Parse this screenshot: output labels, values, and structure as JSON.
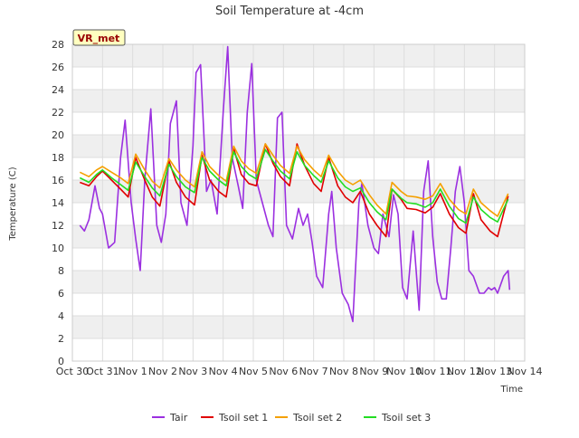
{
  "chart_data": {
    "type": "line",
    "title": "Soil Temperature at -4cm",
    "xlabel": "Time",
    "ylabel": "Temperature (C)",
    "badge": "VR_met",
    "ylim": [
      0,
      28
    ],
    "yticks": [
      0,
      2,
      4,
      6,
      8,
      10,
      12,
      14,
      16,
      18,
      20,
      22,
      24,
      26,
      28
    ],
    "xlim": [
      0,
      15
    ],
    "xticks": [
      {
        "v": 0,
        "label": "Oct 30"
      },
      {
        "v": 1,
        "label": "Oct 31"
      },
      {
        "v": 2,
        "label": "Nov 1"
      },
      {
        "v": 3,
        "label": "Nov 2"
      },
      {
        "v": 4,
        "label": "Nov 3"
      },
      {
        "v": 5,
        "label": "Nov 4"
      },
      {
        "v": 6,
        "label": "Nov 5"
      },
      {
        "v": 7,
        "label": "Nov 6"
      },
      {
        "v": 8,
        "label": "Nov 7"
      },
      {
        "v": 9,
        "label": "Nov 8"
      },
      {
        "v": 10,
        "label": "Nov 9"
      },
      {
        "v": 11,
        "label": "Nov 10"
      },
      {
        "v": 12,
        "label": "Nov 11"
      },
      {
        "v": 13,
        "label": "Nov 12"
      },
      {
        "v": 14,
        "label": "Nov 13"
      },
      {
        "v": 15,
        "label": "Nov 14"
      }
    ],
    "grid": true,
    "legend_placement": "bottom",
    "series": [
      {
        "name": "Tair",
        "color": "#9b30e0",
        "x": [
          0.25,
          0.4,
          0.55,
          0.75,
          0.9,
          1.0,
          1.2,
          1.4,
          1.6,
          1.75,
          1.95,
          2.1,
          2.25,
          2.4,
          2.6,
          2.8,
          2.95,
          3.1,
          3.25,
          3.45,
          3.6,
          3.8,
          4.0,
          4.1,
          4.25,
          4.45,
          4.6,
          4.8,
          5.0,
          5.15,
          5.3,
          5.5,
          5.65,
          5.8,
          5.95,
          6.1,
          6.3,
          6.5,
          6.65,
          6.8,
          6.95,
          7.1,
          7.3,
          7.5,
          7.65,
          7.8,
          7.95,
          8.1,
          8.3,
          8.5,
          8.6,
          8.75,
          8.95,
          9.15,
          9.3,
          9.5,
          9.6,
          9.8,
          10.0,
          10.15,
          10.3,
          10.5,
          10.65,
          10.8,
          10.95,
          11.1,
          11.3,
          11.5,
          11.65,
          11.8,
          11.95,
          12.1,
          12.25,
          12.4,
          12.55,
          12.7,
          12.85,
          13.0,
          13.15,
          13.3,
          13.5,
          13.65,
          13.8,
          13.9,
          14.0,
          14.1,
          14.3,
          14.45,
          14.5
        ],
        "y": [
          12.0,
          11.5,
          12.5,
          15.5,
          13.5,
          13.0,
          10.0,
          10.5,
          18.0,
          21.3,
          14.0,
          10.8,
          8.0,
          16.0,
          22.3,
          12.0,
          10.5,
          13.0,
          21.0,
          23.0,
          14.0,
          12.0,
          19.0,
          25.5,
          26.2,
          15.0,
          16.0,
          13.0,
          22.0,
          27.8,
          18.0,
          15.5,
          13.5,
          22.0,
          26.3,
          16.0,
          14.0,
          12.0,
          11.0,
          21.5,
          22.0,
          12.0,
          10.8,
          13.5,
          12.0,
          13.0,
          10.5,
          7.5,
          6.5,
          13.0,
          15.0,
          10.0,
          6.0,
          5.0,
          3.5,
          14.0,
          15.7,
          12.0,
          10.0,
          9.5,
          13.0,
          11.0,
          14.7,
          13.0,
          6.5,
          5.5,
          11.5,
          4.5,
          15.0,
          17.7,
          11.0,
          7.0,
          5.5,
          5.5,
          10.0,
          15.0,
          17.2,
          14.0,
          8.0,
          7.5,
          6.0,
          6.0,
          6.5,
          6.3,
          6.5,
          6.0,
          7.5,
          8.0,
          6.3
        ]
      },
      {
        "name": "Tsoil set 1",
        "color": "#e00000",
        "x": [
          0.25,
          0.55,
          0.8,
          1.0,
          1.3,
          1.6,
          1.85,
          2.1,
          2.4,
          2.65,
          2.9,
          3.2,
          3.45,
          3.75,
          4.05,
          4.3,
          4.55,
          4.85,
          5.1,
          5.35,
          5.6,
          5.85,
          6.1,
          6.4,
          6.65,
          6.9,
          7.2,
          7.45,
          7.7,
          8.0,
          8.25,
          8.5,
          8.8,
          9.05,
          9.3,
          9.55,
          9.85,
          10.1,
          10.4,
          10.6,
          10.9,
          11.1,
          11.4,
          11.7,
          11.95,
          12.2,
          12.5,
          12.8,
          13.05,
          13.3,
          13.55,
          13.85,
          14.1,
          14.45
        ],
        "y": [
          15.8,
          15.5,
          16.3,
          16.8,
          16.0,
          15.2,
          14.5,
          18.0,
          16.0,
          14.5,
          13.7,
          17.7,
          15.8,
          14.5,
          13.8,
          18.2,
          16.0,
          15.0,
          14.5,
          18.8,
          16.5,
          15.7,
          15.5,
          19.2,
          17.5,
          16.3,
          15.5,
          19.2,
          17.3,
          15.7,
          15.0,
          18.0,
          15.5,
          14.5,
          14.0,
          15.0,
          13.0,
          12.0,
          11.0,
          15.2,
          14.3,
          13.5,
          13.4,
          13.1,
          13.6,
          14.8,
          13.0,
          11.8,
          11.3,
          14.8,
          12.5,
          11.5,
          11.0,
          14.6
        ]
      },
      {
        "name": "Tsoil set 2",
        "color": "#f5a000",
        "x": [
          0.25,
          0.55,
          0.8,
          1.0,
          1.3,
          1.6,
          1.85,
          2.1,
          2.4,
          2.65,
          2.9,
          3.2,
          3.45,
          3.75,
          4.05,
          4.3,
          4.55,
          4.85,
          5.1,
          5.35,
          5.6,
          5.85,
          6.1,
          6.4,
          6.65,
          6.9,
          7.2,
          7.45,
          7.7,
          8.0,
          8.25,
          8.5,
          8.8,
          9.05,
          9.3,
          9.55,
          9.85,
          10.1,
          10.4,
          10.6,
          10.9,
          11.1,
          11.4,
          11.7,
          11.95,
          12.2,
          12.5,
          12.8,
          13.05,
          13.3,
          13.55,
          13.85,
          14.1,
          14.45
        ],
        "y": [
          16.7,
          16.3,
          16.9,
          17.2,
          16.7,
          16.2,
          15.7,
          18.3,
          16.9,
          15.9,
          15.3,
          17.9,
          16.9,
          16.0,
          15.4,
          18.5,
          17.2,
          16.4,
          15.9,
          19.0,
          17.7,
          17.0,
          16.6,
          19.2,
          18.2,
          17.3,
          16.6,
          19.0,
          17.8,
          16.9,
          16.3,
          18.2,
          16.8,
          16.0,
          15.6,
          16.0,
          14.7,
          13.8,
          13.0,
          15.8,
          15.0,
          14.6,
          14.5,
          14.3,
          14.6,
          15.7,
          14.3,
          13.4,
          13.0,
          15.2,
          14.0,
          13.3,
          12.8,
          14.8
        ]
      },
      {
        "name": "Tsoil set 3",
        "color": "#22dd22",
        "x": [
          0.25,
          0.55,
          0.8,
          1.0,
          1.3,
          1.6,
          1.85,
          2.1,
          2.4,
          2.65,
          2.9,
          3.2,
          3.45,
          3.75,
          4.05,
          4.3,
          4.55,
          4.85,
          5.1,
          5.35,
          5.6,
          5.85,
          6.1,
          6.4,
          6.65,
          6.9,
          7.2,
          7.45,
          7.7,
          8.0,
          8.25,
          8.5,
          8.8,
          9.05,
          9.3,
          9.55,
          9.85,
          10.1,
          10.4,
          10.6,
          10.9,
          11.1,
          11.4,
          11.7,
          11.95,
          12.2,
          12.5,
          12.8,
          13.05,
          13.3,
          13.55,
          13.85,
          14.1,
          14.45
        ],
        "y": [
          16.2,
          15.8,
          16.5,
          16.9,
          16.2,
          15.6,
          15.1,
          17.6,
          16.3,
          15.3,
          14.6,
          17.4,
          16.3,
          15.4,
          14.9,
          18.0,
          16.8,
          16.0,
          15.5,
          18.5,
          17.2,
          16.5,
          16.1,
          18.7,
          17.7,
          16.8,
          16.1,
          18.5,
          17.3,
          16.4,
          15.8,
          17.7,
          16.2,
          15.4,
          15.0,
          15.3,
          14.0,
          13.2,
          12.5,
          15.2,
          14.4,
          14.0,
          13.9,
          13.6,
          14.0,
          15.2,
          13.7,
          12.6,
          12.2,
          14.5,
          13.4,
          12.7,
          12.3,
          14.3
        ]
      }
    ]
  }
}
